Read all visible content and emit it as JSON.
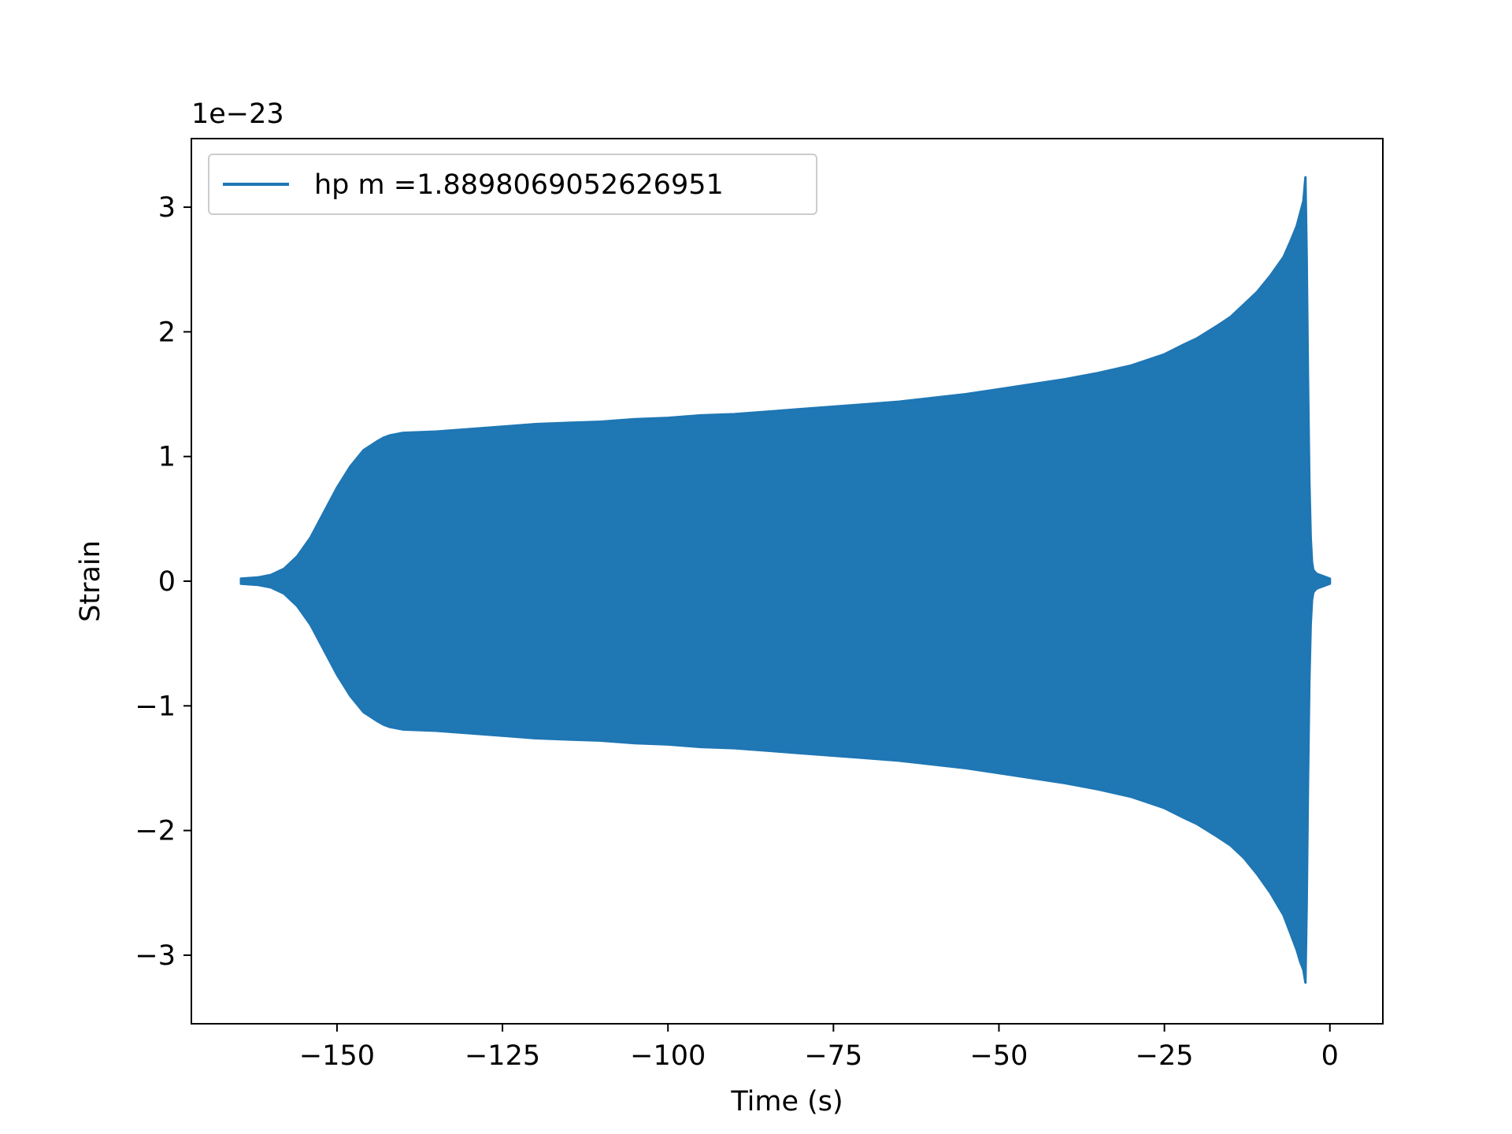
{
  "chart_data": {
    "type": "area",
    "title": "",
    "xlabel": "Time (s)",
    "ylabel": "Strain",
    "y_offset_text": "1e−23",
    "xlim": [
      -172,
      8
    ],
    "ylim": [
      -3.55,
      3.55
    ],
    "grid": false,
    "legend_position": "upper-left",
    "x_ticks": [
      {
        "value": -150,
        "label": "−150"
      },
      {
        "value": -125,
        "label": "−125"
      },
      {
        "value": -100,
        "label": "−100"
      },
      {
        "value": -75,
        "label": "−75"
      },
      {
        "value": -50,
        "label": "−50"
      },
      {
        "value": -25,
        "label": "−25"
      },
      {
        "value": 0,
        "label": "0"
      }
    ],
    "y_ticks": [
      {
        "value": 3,
        "label": "3"
      },
      {
        "value": 2,
        "label": "2"
      },
      {
        "value": 1,
        "label": "1"
      },
      {
        "value": 0,
        "label": "0"
      },
      {
        "value": -1,
        "label": "−1"
      },
      {
        "value": -2,
        "label": "−2"
      },
      {
        "value": -3,
        "label": "−3"
      }
    ],
    "series": [
      {
        "name": "hp m =1.8898069052626951",
        "color": "#1f77b4",
        "envelope": {
          "t": [
            -164.5,
            -162,
            -160,
            -158,
            -156,
            -154,
            -152,
            -150,
            -148,
            -146,
            -144,
            -143,
            -142,
            -141,
            -140,
            -135,
            -130,
            -125,
            -120,
            -115,
            -110,
            -105,
            -100,
            -95,
            -90,
            -85,
            -80,
            -75,
            -70,
            -65,
            -60,
            -55,
            -50,
            -45,
            -40,
            -35,
            -30,
            -25,
            -22,
            -20,
            -17,
            -15,
            -13,
            -11,
            -9,
            -7,
            -6,
            -5,
            -4.5,
            -4,
            -3.7,
            -3.5,
            -3.3,
            -3.1,
            -2.9,
            -2.7,
            -2.5,
            -2.2,
            -2,
            -1.5,
            -1,
            -0.5,
            0
          ],
          "upper": [
            0.02,
            0.03,
            0.05,
            0.1,
            0.2,
            0.35,
            0.55,
            0.75,
            0.92,
            1.05,
            1.12,
            1.15,
            1.17,
            1.18,
            1.19,
            1.2,
            1.22,
            1.24,
            1.26,
            1.27,
            1.28,
            1.3,
            1.31,
            1.33,
            1.34,
            1.36,
            1.38,
            1.4,
            1.42,
            1.44,
            1.47,
            1.5,
            1.54,
            1.58,
            1.62,
            1.67,
            1.73,
            1.82,
            1.9,
            1.95,
            2.05,
            2.12,
            2.22,
            2.32,
            2.45,
            2.6,
            2.72,
            2.85,
            2.95,
            3.05,
            3.24,
            2.6,
            1.6,
            0.8,
            0.35,
            0.15,
            0.09,
            0.07,
            0.06,
            0.05,
            0.04,
            0.03,
            0.02
          ],
          "lower": [
            -0.02,
            -0.03,
            -0.05,
            -0.1,
            -0.2,
            -0.35,
            -0.55,
            -0.75,
            -0.92,
            -1.05,
            -1.12,
            -1.15,
            -1.17,
            -1.18,
            -1.19,
            -1.2,
            -1.22,
            -1.24,
            -1.26,
            -1.27,
            -1.28,
            -1.3,
            -1.31,
            -1.33,
            -1.34,
            -1.36,
            -1.38,
            -1.4,
            -1.42,
            -1.44,
            -1.47,
            -1.5,
            -1.54,
            -1.58,
            -1.62,
            -1.67,
            -1.73,
            -1.82,
            -1.9,
            -1.95,
            -2.05,
            -2.12,
            -2.22,
            -2.35,
            -2.5,
            -2.68,
            -2.82,
            -2.96,
            -3.05,
            -3.12,
            -3.22,
            -2.6,
            -1.6,
            -0.8,
            -0.35,
            -0.15,
            -0.09,
            -0.07,
            -0.06,
            -0.05,
            -0.04,
            -0.03,
            -0.02
          ]
        }
      }
    ]
  }
}
